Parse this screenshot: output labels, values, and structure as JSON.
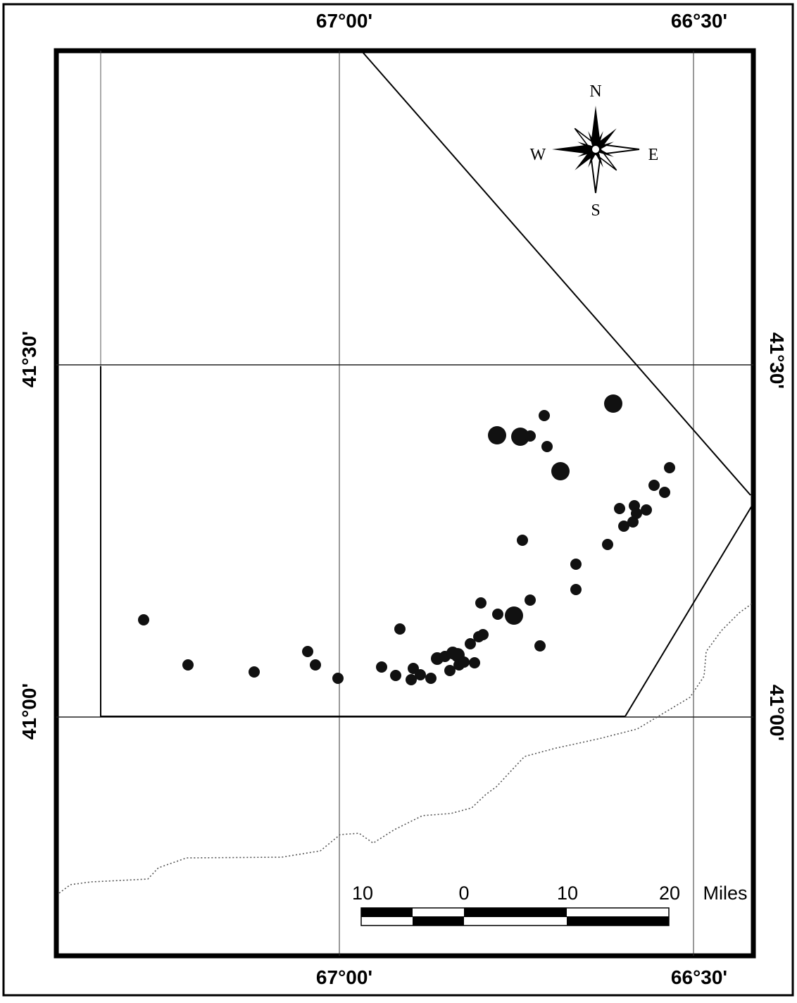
{
  "map": {
    "graticule_labels": {
      "lon_left_top": "67°00'",
      "lon_right_top": "66°30'",
      "lon_left_bottom": "67°00'",
      "lon_right_bottom": "66°30'",
      "lat_upper_left": "41°30'",
      "lat_lower_left": "41°00'",
      "lat_upper_right": "41°30'",
      "lat_lower_right": "41°00'"
    },
    "compass": {
      "n": "N",
      "s": "S",
      "e": "E",
      "w": "W"
    },
    "scale_bar": {
      "t0": "10",
      "t1": "0",
      "t2": "10",
      "t3": "20",
      "unit": "Miles"
    },
    "colors": {
      "ink": "#000000",
      "frame": "#000000",
      "grid": "#333333",
      "point": "#111111"
    },
    "point_icon": "filled-circle"
  }
}
